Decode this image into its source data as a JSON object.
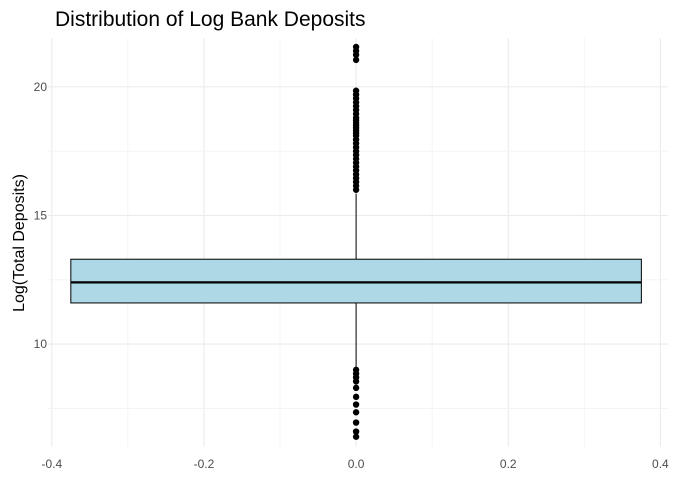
{
  "chart_data": {
    "type": "boxplot",
    "title": "Distribution of Log Bank Deposits",
    "xlabel": "",
    "ylabel": "Log(Total Deposits)",
    "xlim": [
      -0.405,
      0.41
    ],
    "ylim": [
      6.0,
      21.9
    ],
    "x_ticks": [
      -0.4,
      -0.2,
      0.0,
      0.2,
      0.4
    ],
    "x_tick_labels": [
      "-0.4",
      "-0.2",
      "0.0",
      "0.2",
      "0.4"
    ],
    "y_ticks": [
      10,
      15,
      20
    ],
    "y_tick_labels": [
      "10",
      "15",
      "20"
    ],
    "grid": true,
    "box": {
      "x_center": 0.0,
      "x_left": -0.375,
      "x_right": 0.375,
      "q1": 11.6,
      "median": 12.4,
      "q3": 13.3,
      "whisker_low": 9.05,
      "whisker_high": 15.85,
      "fill": "#add8e6",
      "stroke": "#000000"
    },
    "outliers": [
      21.55,
      21.4,
      21.25,
      21.05,
      19.85,
      19.7,
      19.55,
      19.4,
      19.25,
      19.1,
      18.95,
      18.8,
      18.7,
      18.6,
      18.5,
      18.4,
      18.3,
      18.2,
      18.1,
      17.95,
      17.8,
      17.65,
      17.5,
      17.35,
      17.2,
      17.05,
      16.9,
      16.75,
      16.6,
      16.45,
      16.3,
      16.15,
      16.0,
      9.0,
      8.85,
      8.7,
      8.55,
      8.3,
      7.95,
      7.65,
      7.35,
      6.95,
      6.6,
      6.4
    ]
  }
}
